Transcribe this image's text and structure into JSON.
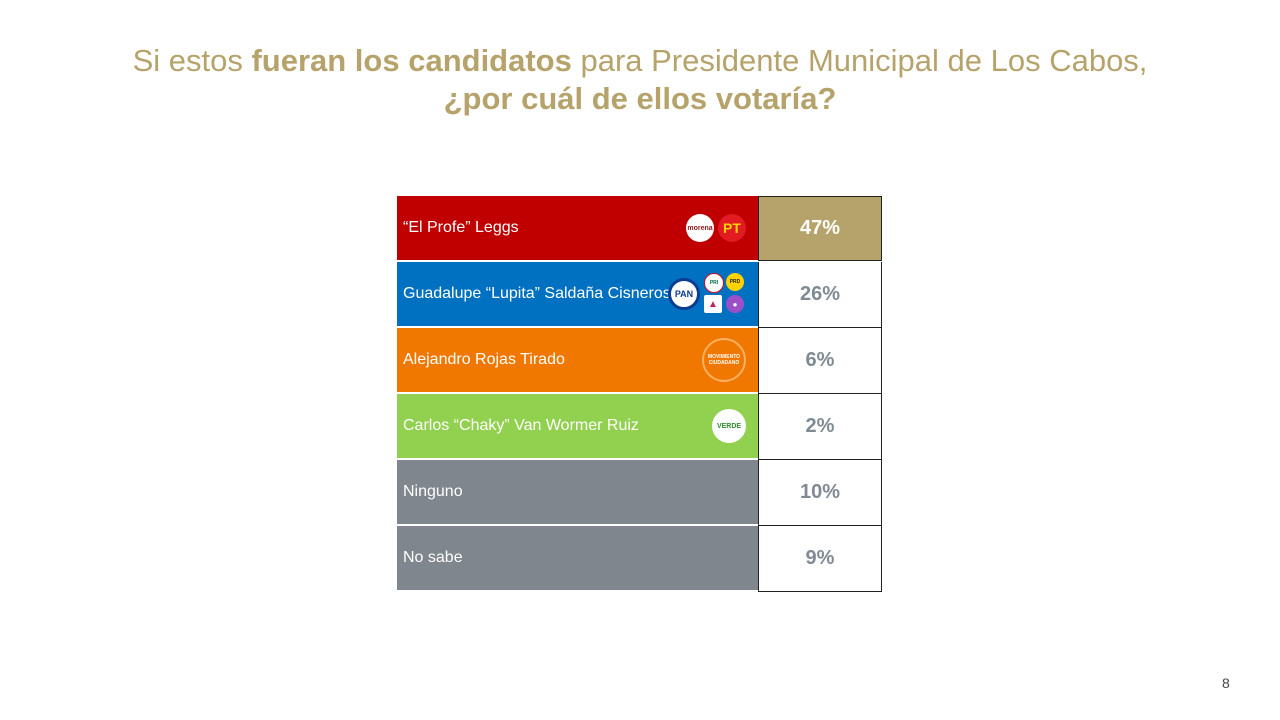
{
  "title": {
    "part1": "Si estos ",
    "part2_bold": "fueran los candidatos",
    "part3": " para Presidente Municipal de Los Cabos,",
    "line2": "¿por cuál de ellos votaría?"
  },
  "colors": {
    "title": "#b6a36b",
    "highlight_value_bg": "#b6a36b",
    "value_text": "#808a94"
  },
  "chart_data": {
    "type": "table",
    "rows": [
      {
        "label": "“El Profe” Leggs",
        "value": 47,
        "display": "47%",
        "color": "#c00000",
        "logos": [
          "morena-logo",
          "pt-logo"
        ]
      },
      {
        "label": "Guadalupe “Lupita” Saldaña Cisneros",
        "value": 26,
        "display": "26%",
        "color": "#0070c0",
        "logos": [
          "pan-logo",
          "pri-logo",
          "prd-logo",
          "prs-logo",
          "mujeres-logo"
        ]
      },
      {
        "label": "Alejandro Rojas Tirado",
        "value": 6,
        "display": "6%",
        "color": "#f07800",
        "logos": [
          "movimiento-ciudadano-logo"
        ]
      },
      {
        "label": "Carlos “Chaky” Van Wormer Ruiz",
        "value": 2,
        "display": "2%",
        "color": "#92d050",
        "logos": [
          "verde-logo"
        ]
      },
      {
        "label": "Ninguno",
        "value": 10,
        "display": "10%",
        "color": "#7f868d",
        "logos": []
      },
      {
        "label": "No sabe",
        "value": 9,
        "display": "9%",
        "color": "#7f868d",
        "logos": []
      }
    ]
  },
  "logo_text": {
    "morena": "morena",
    "pt": "PT",
    "pan": "PAN",
    "pri": "PRI",
    "prd": "PRD",
    "mc": "MOVIMIENTO CIUDADANO",
    "verde": "VERDE"
  },
  "page_number": "8"
}
